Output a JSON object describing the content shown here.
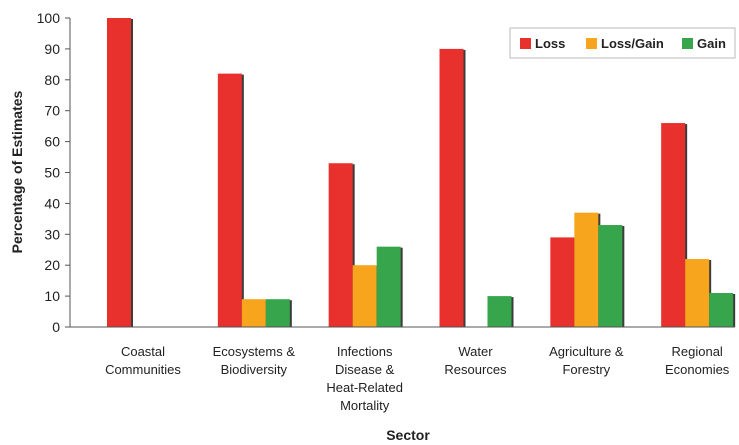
{
  "chart_data": {
    "type": "bar",
    "categories": [
      [
        "Coastal",
        "Communities"
      ],
      [
        "Ecosystems &",
        "Biodiversity"
      ],
      [
        "Infections",
        "Disease &",
        "Heat-Related",
        "Mortality"
      ],
      [
        "Water",
        "Resources"
      ],
      [
        "Agriculture &",
        "Forestry"
      ],
      [
        "Regional",
        "Economies"
      ]
    ],
    "series": [
      {
        "name": "Loss",
        "values": [
          100,
          82,
          53,
          90,
          29,
          66
        ]
      },
      {
        "name": "Loss/Gain",
        "values": [
          0,
          9,
          20,
          0,
          37,
          22
        ]
      },
      {
        "name": "Gain",
        "values": [
          0,
          9,
          26,
          10,
          33,
          11
        ]
      }
    ],
    "xlabel": "Sector",
    "ylabel": "Percentage of Estimates",
    "ylim": [
      0,
      100
    ],
    "yticks": [
      0,
      10,
      20,
      30,
      40,
      50,
      60,
      70,
      80,
      90,
      100
    ],
    "grid": false,
    "legend_position": "top-right",
    "colors": [
      "#e8302c",
      "#f6a51d",
      "#36a54b"
    ]
  }
}
